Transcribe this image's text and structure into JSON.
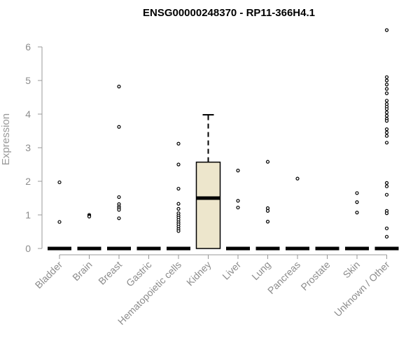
{
  "chart_data": {
    "type": "boxplot",
    "title": "ENSG00000248370 - RP11-366H4.1",
    "xlabel": "",
    "ylabel": "Expression",
    "ylim": [
      0,
      6.6
    ],
    "yticks": [
      0,
      1,
      2,
      3,
      4,
      5,
      6
    ],
    "grid": false,
    "colors": {
      "box_fill": "#ede6cc",
      "box_stroke": "#000000",
      "axis": "#999999",
      "text": "#8c8c8c"
    },
    "categories": [
      "Bladder",
      "Brain",
      "Breast",
      "Gastric",
      "Hematopoietic cells",
      "Kidney",
      "Liver",
      "Lung",
      "Pancreas",
      "Prostate",
      "Skin",
      "Unknown / Other"
    ],
    "boxes": [
      {
        "category": "Bladder",
        "min": 0,
        "q1": 0,
        "median": 0,
        "q3": 0,
        "max": 0,
        "outliers": [
          1.97,
          0.79
        ]
      },
      {
        "category": "Brain",
        "min": 0,
        "q1": 0,
        "median": 0,
        "q3": 0,
        "max": 0,
        "outliers": [
          1.0,
          0.97,
          0.95
        ]
      },
      {
        "category": "Breast",
        "min": 0,
        "q1": 0,
        "median": 0,
        "q3": 0,
        "max": 0,
        "outliers": [
          4.82,
          3.62,
          1.53,
          1.32,
          1.25,
          1.2,
          1.15,
          0.9
        ]
      },
      {
        "category": "Gastric",
        "min": 0,
        "q1": 0,
        "median": 0,
        "q3": 0,
        "max": 0,
        "outliers": []
      },
      {
        "category": "Hematopoietic cells",
        "min": 0,
        "q1": 0,
        "median": 0,
        "q3": 0,
        "max": 0,
        "outliers": [
          3.12,
          2.5,
          1.78,
          1.33,
          1.18,
          1.05,
          0.98,
          0.92,
          0.85,
          0.78,
          0.72,
          0.65,
          0.58,
          0.52
        ]
      },
      {
        "category": "Kidney",
        "min": 0,
        "q1": 0,
        "median": 1.5,
        "q3": 2.57,
        "max": 3.98,
        "outliers": []
      },
      {
        "category": "Liver",
        "min": 0,
        "q1": 0,
        "median": 0,
        "q3": 0,
        "max": 0,
        "outliers": [
          2.32,
          1.42,
          1.22
        ]
      },
      {
        "category": "Lung",
        "min": 0,
        "q1": 0,
        "median": 0,
        "q3": 0,
        "max": 0,
        "outliers": [
          2.58,
          1.2,
          1.12,
          0.8
        ]
      },
      {
        "category": "Pancreas",
        "min": 0,
        "q1": 0,
        "median": 0,
        "q3": 0,
        "max": 0,
        "outliers": [
          2.08
        ]
      },
      {
        "category": "Prostate",
        "min": 0,
        "q1": 0,
        "median": 0,
        "q3": 0,
        "max": 0,
        "outliers": []
      },
      {
        "category": "Skin",
        "min": 0,
        "q1": 0,
        "median": 0,
        "q3": 0,
        "max": 0,
        "outliers": [
          1.65,
          1.38,
          1.07
        ]
      },
      {
        "category": "Unknown / Other",
        "min": 0,
        "q1": 0,
        "median": 0,
        "q3": 0,
        "max": 0,
        "outliers": [
          6.5,
          5.1,
          5.0,
          4.88,
          4.75,
          4.62,
          4.4,
          4.3,
          4.22,
          4.15,
          4.05,
          3.95,
          3.86,
          3.8,
          3.55,
          3.45,
          3.35,
          3.15,
          1.95,
          1.85,
          1.6,
          1.12,
          1.05,
          0.6,
          0.35
        ]
      }
    ]
  }
}
